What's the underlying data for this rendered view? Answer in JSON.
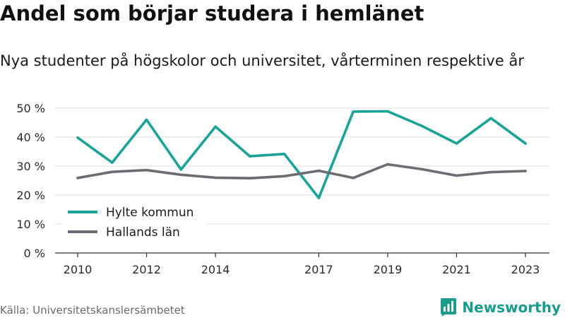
{
  "header": {
    "title": "Andel som börjar studera i hemlänet",
    "subtitle": "Nya studenter på högskolor och universitet, vårterminen respektive år"
  },
  "footer": {
    "source": "Källa: Universitetskanslersämbetet",
    "brand": "Newsworthy",
    "brand_icon": "bar-chart-badge-icon"
  },
  "colors": {
    "hylte": "#1aa396",
    "hallands": "#6e6c73",
    "grid": "#dcdcdc",
    "brand": "#1a9b8e"
  },
  "chart_data": {
    "type": "line",
    "x": [
      2010,
      2011,
      2012,
      2013,
      2014,
      2015,
      2016,
      2017,
      2018,
      2019,
      2020,
      2021,
      2022,
      2023
    ],
    "xticks": [
      2010,
      2012,
      2014,
      2017,
      2019,
      2021,
      2023
    ],
    "yticks": [
      0,
      10,
      20,
      30,
      40,
      50
    ],
    "ytick_labels": [
      "0 %",
      "10 %",
      "20 %",
      "30 %",
      "40 %",
      "50 %"
    ],
    "ylim": [
      0,
      50
    ],
    "grid": true,
    "legend_position": "bottom-left",
    "series": [
      {
        "name": "Hylte kommun",
        "color": "#1aa396",
        "values": [
          39.8,
          31.2,
          46.0,
          28.8,
          43.6,
          33.4,
          34.2,
          19.0,
          48.8,
          48.9,
          43.8,
          37.8,
          46.5,
          37.8
        ]
      },
      {
        "name": "Hallands län",
        "color": "#6e6c73",
        "values": [
          25.9,
          28.0,
          28.6,
          27.0,
          26.0,
          25.8,
          26.5,
          28.4,
          25.9,
          30.6,
          28.9,
          26.7,
          27.9,
          28.3
        ]
      }
    ]
  }
}
